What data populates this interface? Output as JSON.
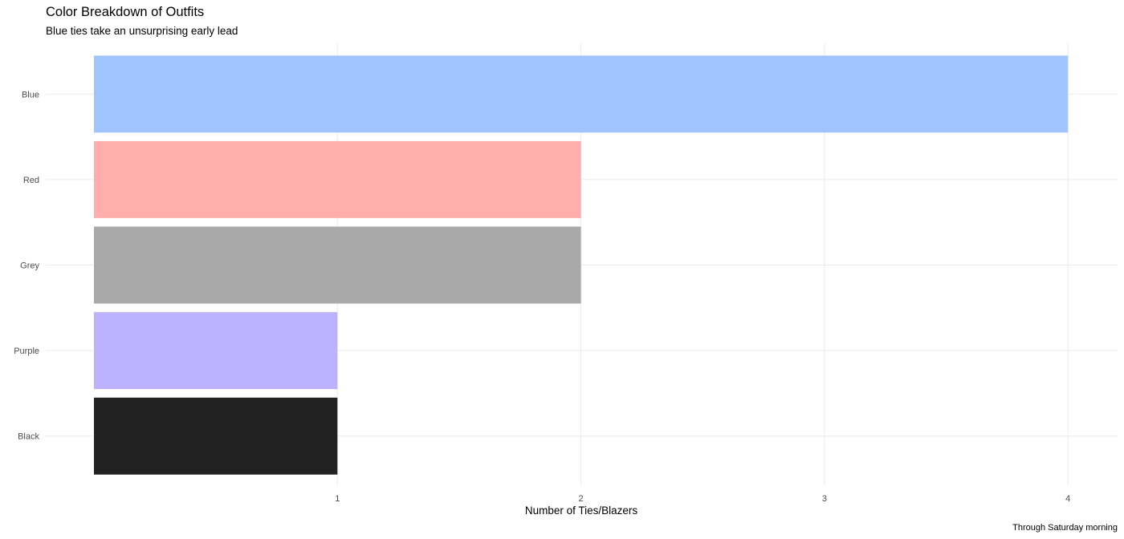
{
  "chart_data": {
    "type": "bar",
    "orientation": "horizontal",
    "title": "Color Breakdown of Outfits",
    "subtitle": "Blue ties take an unsurprising early lead",
    "xlabel": "Number of Ties/Blazers",
    "ylabel": "",
    "caption": "Through Saturday morning",
    "categories": [
      "Blue",
      "Red",
      "Grey",
      "Purple",
      "Black"
    ],
    "values": [
      4,
      2,
      2,
      1,
      1
    ],
    "colors": [
      "#a0c4ff",
      "#ffadad",
      "#a9a9a9",
      "#bdb2ff",
      "#222222"
    ],
    "x_ticks": [
      "1",
      "2",
      "3",
      "4"
    ],
    "xlim": [
      0,
      4.2
    ],
    "grid": true,
    "legend": "none"
  }
}
